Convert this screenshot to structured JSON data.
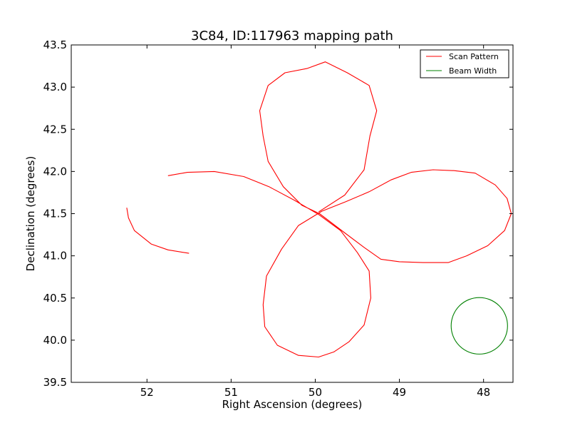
{
  "chart_data": {
    "type": "line",
    "title": "3C84, ID:117963 mapping path",
    "xlabel": "Right Ascension (degrees)",
    "ylabel": "Declination (degrees)",
    "xlim": [
      52.9,
      47.65
    ],
    "ylim": [
      39.5,
      43.5
    ],
    "x_axis_inverted": true,
    "xticks": [
      52,
      51,
      50,
      49,
      48
    ],
    "xtick_labels": [
      "52",
      "51",
      "50",
      "49",
      "48"
    ],
    "yticks": [
      39.5,
      40.0,
      40.5,
      41.0,
      41.5,
      42.0,
      42.5,
      43.0,
      43.5
    ],
    "ytick_labels": [
      "39.5",
      "40.0",
      "40.5",
      "41.0",
      "41.5",
      "42.0",
      "42.5",
      "43.0",
      "43.5"
    ],
    "grid": false,
    "legend": {
      "placement": "top-right",
      "entries": [
        {
          "name": "Scan Pattern",
          "color": "#ff0000"
        },
        {
          "name": "Beam Width",
          "color": "#008000"
        }
      ]
    },
    "series": [
      {
        "name": "Scan Pattern",
        "kind": "line",
        "color": "#ff0000",
        "points": [
          [
            49.96,
            41.52
          ],
          [
            49.65,
            41.72
          ],
          [
            49.42,
            42.02
          ],
          [
            49.35,
            42.42
          ],
          [
            49.27,
            42.72
          ],
          [
            49.36,
            43.02
          ],
          [
            49.62,
            43.17
          ],
          [
            49.88,
            43.3
          ],
          [
            50.1,
            43.22
          ],
          [
            50.36,
            43.17
          ],
          [
            50.56,
            43.02
          ],
          [
            50.66,
            42.72
          ],
          [
            50.62,
            42.42
          ],
          [
            50.56,
            42.12
          ],
          [
            50.38,
            41.82
          ],
          [
            50.16,
            41.6
          ],
          [
            49.95,
            41.5
          ],
          [
            49.66,
            41.28
          ],
          [
            49.42,
            41.1
          ],
          [
            49.22,
            40.96
          ],
          [
            49.0,
            40.93
          ],
          [
            48.72,
            40.92
          ],
          [
            48.42,
            40.92
          ],
          [
            48.2,
            41.0
          ],
          [
            47.95,
            41.12
          ],
          [
            47.75,
            41.3
          ],
          [
            47.67,
            41.5
          ],
          [
            47.72,
            41.68
          ],
          [
            47.86,
            41.84
          ],
          [
            48.1,
            41.98
          ],
          [
            48.35,
            42.01
          ],
          [
            48.6,
            42.02
          ],
          [
            48.86,
            41.99
          ],
          [
            49.1,
            41.9
          ],
          [
            49.36,
            41.76
          ],
          [
            49.64,
            41.64
          ],
          [
            49.92,
            41.53
          ],
          [
            50.2,
            41.36
          ],
          [
            50.4,
            41.08
          ],
          [
            50.58,
            40.76
          ],
          [
            50.62,
            40.42
          ],
          [
            50.6,
            40.16
          ],
          [
            50.45,
            39.94
          ],
          [
            50.2,
            39.82
          ],
          [
            49.96,
            39.8
          ],
          [
            49.78,
            39.86
          ],
          [
            49.6,
            39.98
          ],
          [
            49.42,
            40.18
          ],
          [
            49.34,
            40.5
          ],
          [
            49.36,
            40.82
          ],
          [
            49.5,
            41.04
          ],
          [
            49.7,
            41.3
          ],
          [
            49.96,
            41.49
          ],
          [
            50.25,
            41.66
          ],
          [
            50.55,
            41.82
          ],
          [
            50.85,
            41.94
          ],
          [
            51.2,
            42.0
          ],
          [
            51.52,
            41.99
          ],
          [
            51.75,
            41.95
          ]
        ]
      },
      {
        "name": "Scan Pattern",
        "kind": "line",
        "color": "#ff0000",
        "points": [
          [
            51.5,
            41.03
          ],
          [
            51.75,
            41.07
          ],
          [
            51.95,
            41.14
          ],
          [
            52.15,
            41.3
          ],
          [
            52.22,
            41.45
          ],
          [
            52.24,
            41.57
          ]
        ]
      },
      {
        "name": "Beam Width",
        "kind": "circle",
        "color": "#008000",
        "center": [
          48.05,
          40.17
        ],
        "radius": 0.335
      }
    ]
  }
}
